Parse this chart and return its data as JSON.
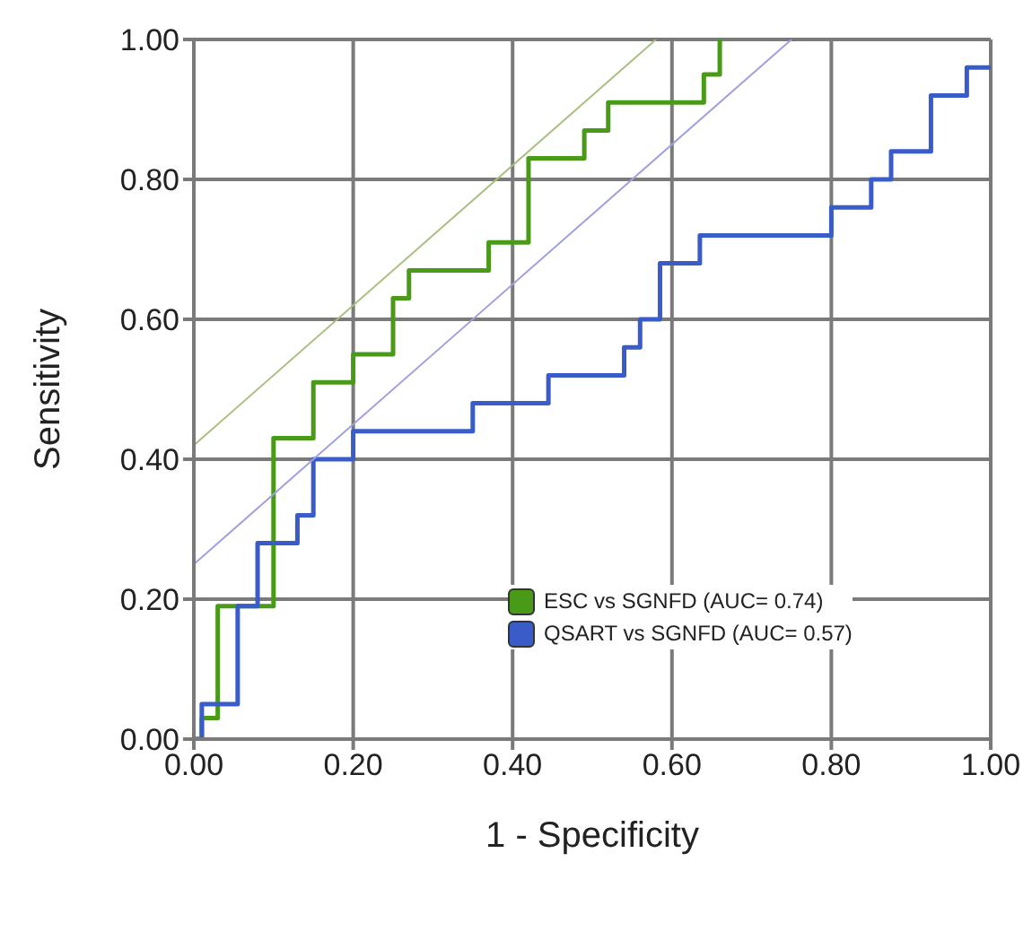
{
  "chart_data": {
    "type": "step",
    "xlabel": "1 - Specificity",
    "ylabel": "Sensitivity",
    "xlim": [
      0,
      1
    ],
    "ylim": [
      0,
      1
    ],
    "xticks": [
      {
        "value": 0,
        "label": "0.00"
      },
      {
        "value": 0.2,
        "label": "0.20"
      },
      {
        "value": 0.4,
        "label": "0.40"
      },
      {
        "value": 0.6,
        "label": "0.60"
      },
      {
        "value": 0.8,
        "label": "0.80"
      },
      {
        "value": 1,
        "label": "1.00"
      }
    ],
    "yticks": [
      {
        "value": 0,
        "label": "0.00"
      },
      {
        "value": 0.2,
        "label": "0.20"
      },
      {
        "value": 0.4,
        "label": "0.40"
      },
      {
        "value": 0.6,
        "label": "0.60"
      },
      {
        "value": 0.8,
        "label": "0.80"
      },
      {
        "value": 1,
        "label": "1.00"
      }
    ],
    "grid": true,
    "legend": "right",
    "marker": "none",
    "line_style": "solid",
    "series": [
      {
        "name": "ESC vs SGNFD (AUC= 0.74)",
        "color": "#4a9a1a",
        "x": [
          0,
          0.01,
          0.03,
          0.1,
          0.15,
          0.2,
          0.25,
          0.27,
          0.37,
          0.42,
          0.49,
          0.52,
          0.64,
          0.66
        ],
        "values": [
          0,
          0.03,
          0.19,
          0.43,
          0.51,
          0.55,
          0.63,
          0.67,
          0.71,
          0.83,
          0.87,
          0.91,
          0.95,
          1.0
        ]
      },
      {
        "name": "QSART vs SGNFD (AUC= 0.57)",
        "color": "#3a5cc8",
        "x": [
          0,
          0.01,
          0.055,
          0.08,
          0.13,
          0.15,
          0.2,
          0.35,
          0.445,
          0.54,
          0.56,
          0.585,
          0.635,
          0.8,
          0.85,
          0.875,
          0.925,
          0.97,
          1.0
        ],
        "values": [
          0,
          0.05,
          0.19,
          0.28,
          0.32,
          0.4,
          0.44,
          0.48,
          0.52,
          0.56,
          0.6,
          0.68,
          0.72,
          0.76,
          0.8,
          0.84,
          0.92,
          0.96,
          0.96
        ]
      },
      {
        "type": "line",
        "color": "#a8c080",
        "x": [
          0,
          0.58
        ],
        "values": [
          0.42,
          1.0
        ]
      },
      {
        "type": "line",
        "color": "#a0a0e0",
        "x": [
          0,
          0.75
        ],
        "values": [
          0.25,
          1.0
        ]
      }
    ]
  }
}
